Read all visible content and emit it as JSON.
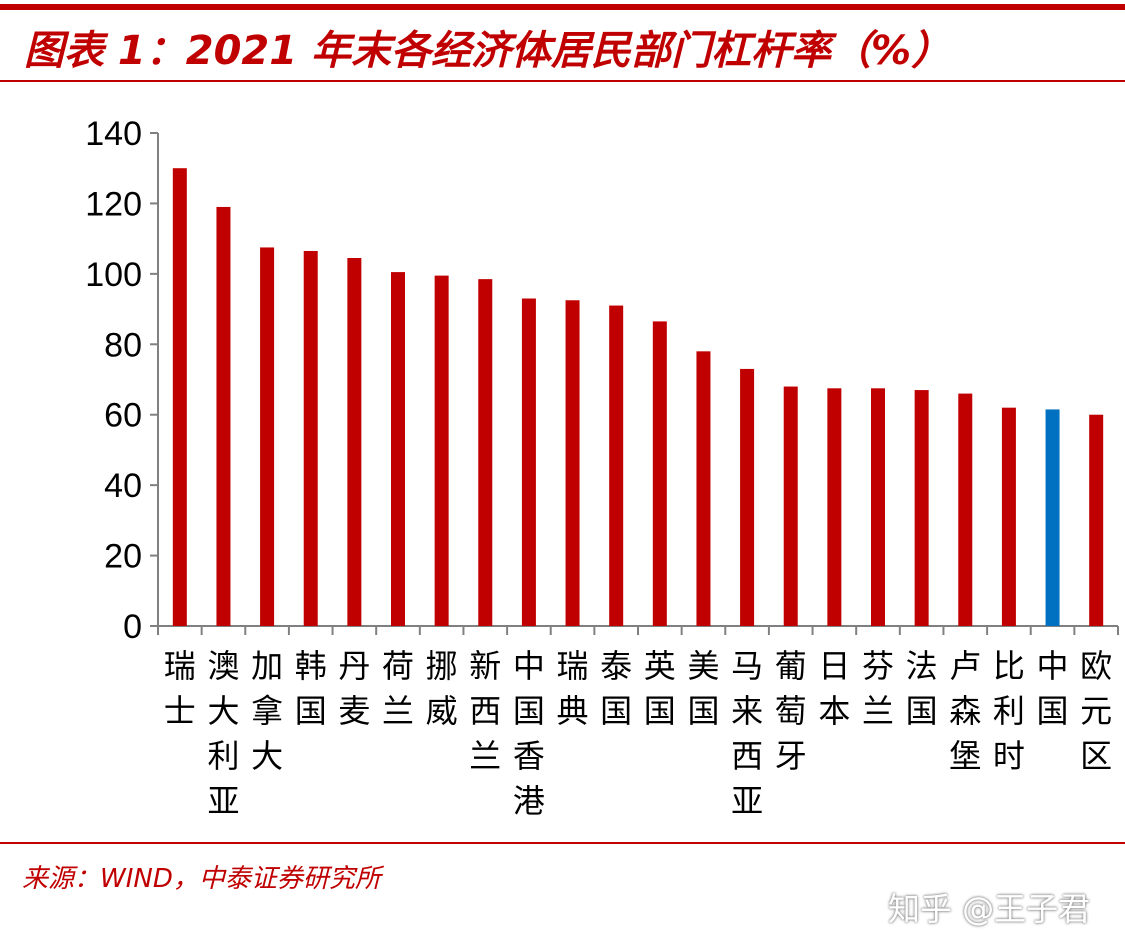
{
  "title": "图表 1：2021 年末各经济体居民部门杠杆率（%）",
  "source": "来源：WIND，中泰证券研究所",
  "watermark": "知乎 @王子君",
  "colors": {
    "default": "#c00000",
    "highlight": "#0070c0",
    "axis": "#808080",
    "text": "#000000"
  },
  "chart_data": {
    "type": "bar",
    "categories": [
      "瑞士",
      "澳大利亚",
      "加拿大",
      "韩国",
      "丹麦",
      "荷兰",
      "挪威",
      "新西兰",
      "中国香港",
      "瑞典",
      "泰国",
      "英国",
      "美国",
      "马来西亚",
      "葡萄牙",
      "日本",
      "芬兰",
      "法国",
      "卢森堡",
      "比利时",
      "中国",
      "欧元区"
    ],
    "values": [
      130,
      119,
      107.5,
      106.5,
      104.5,
      100.5,
      99.5,
      98.5,
      93,
      92.5,
      91,
      86.5,
      78,
      73,
      68,
      67.5,
      67.5,
      67,
      66,
      62,
      61.5,
      60
    ],
    "highlight": "中国",
    "ylim": [
      0,
      140
    ],
    "yticks": [
      0,
      20,
      40,
      60,
      80,
      100,
      120,
      140
    ],
    "xlabel": "",
    "ylabel": "",
    "grid": false,
    "legend": "none"
  }
}
